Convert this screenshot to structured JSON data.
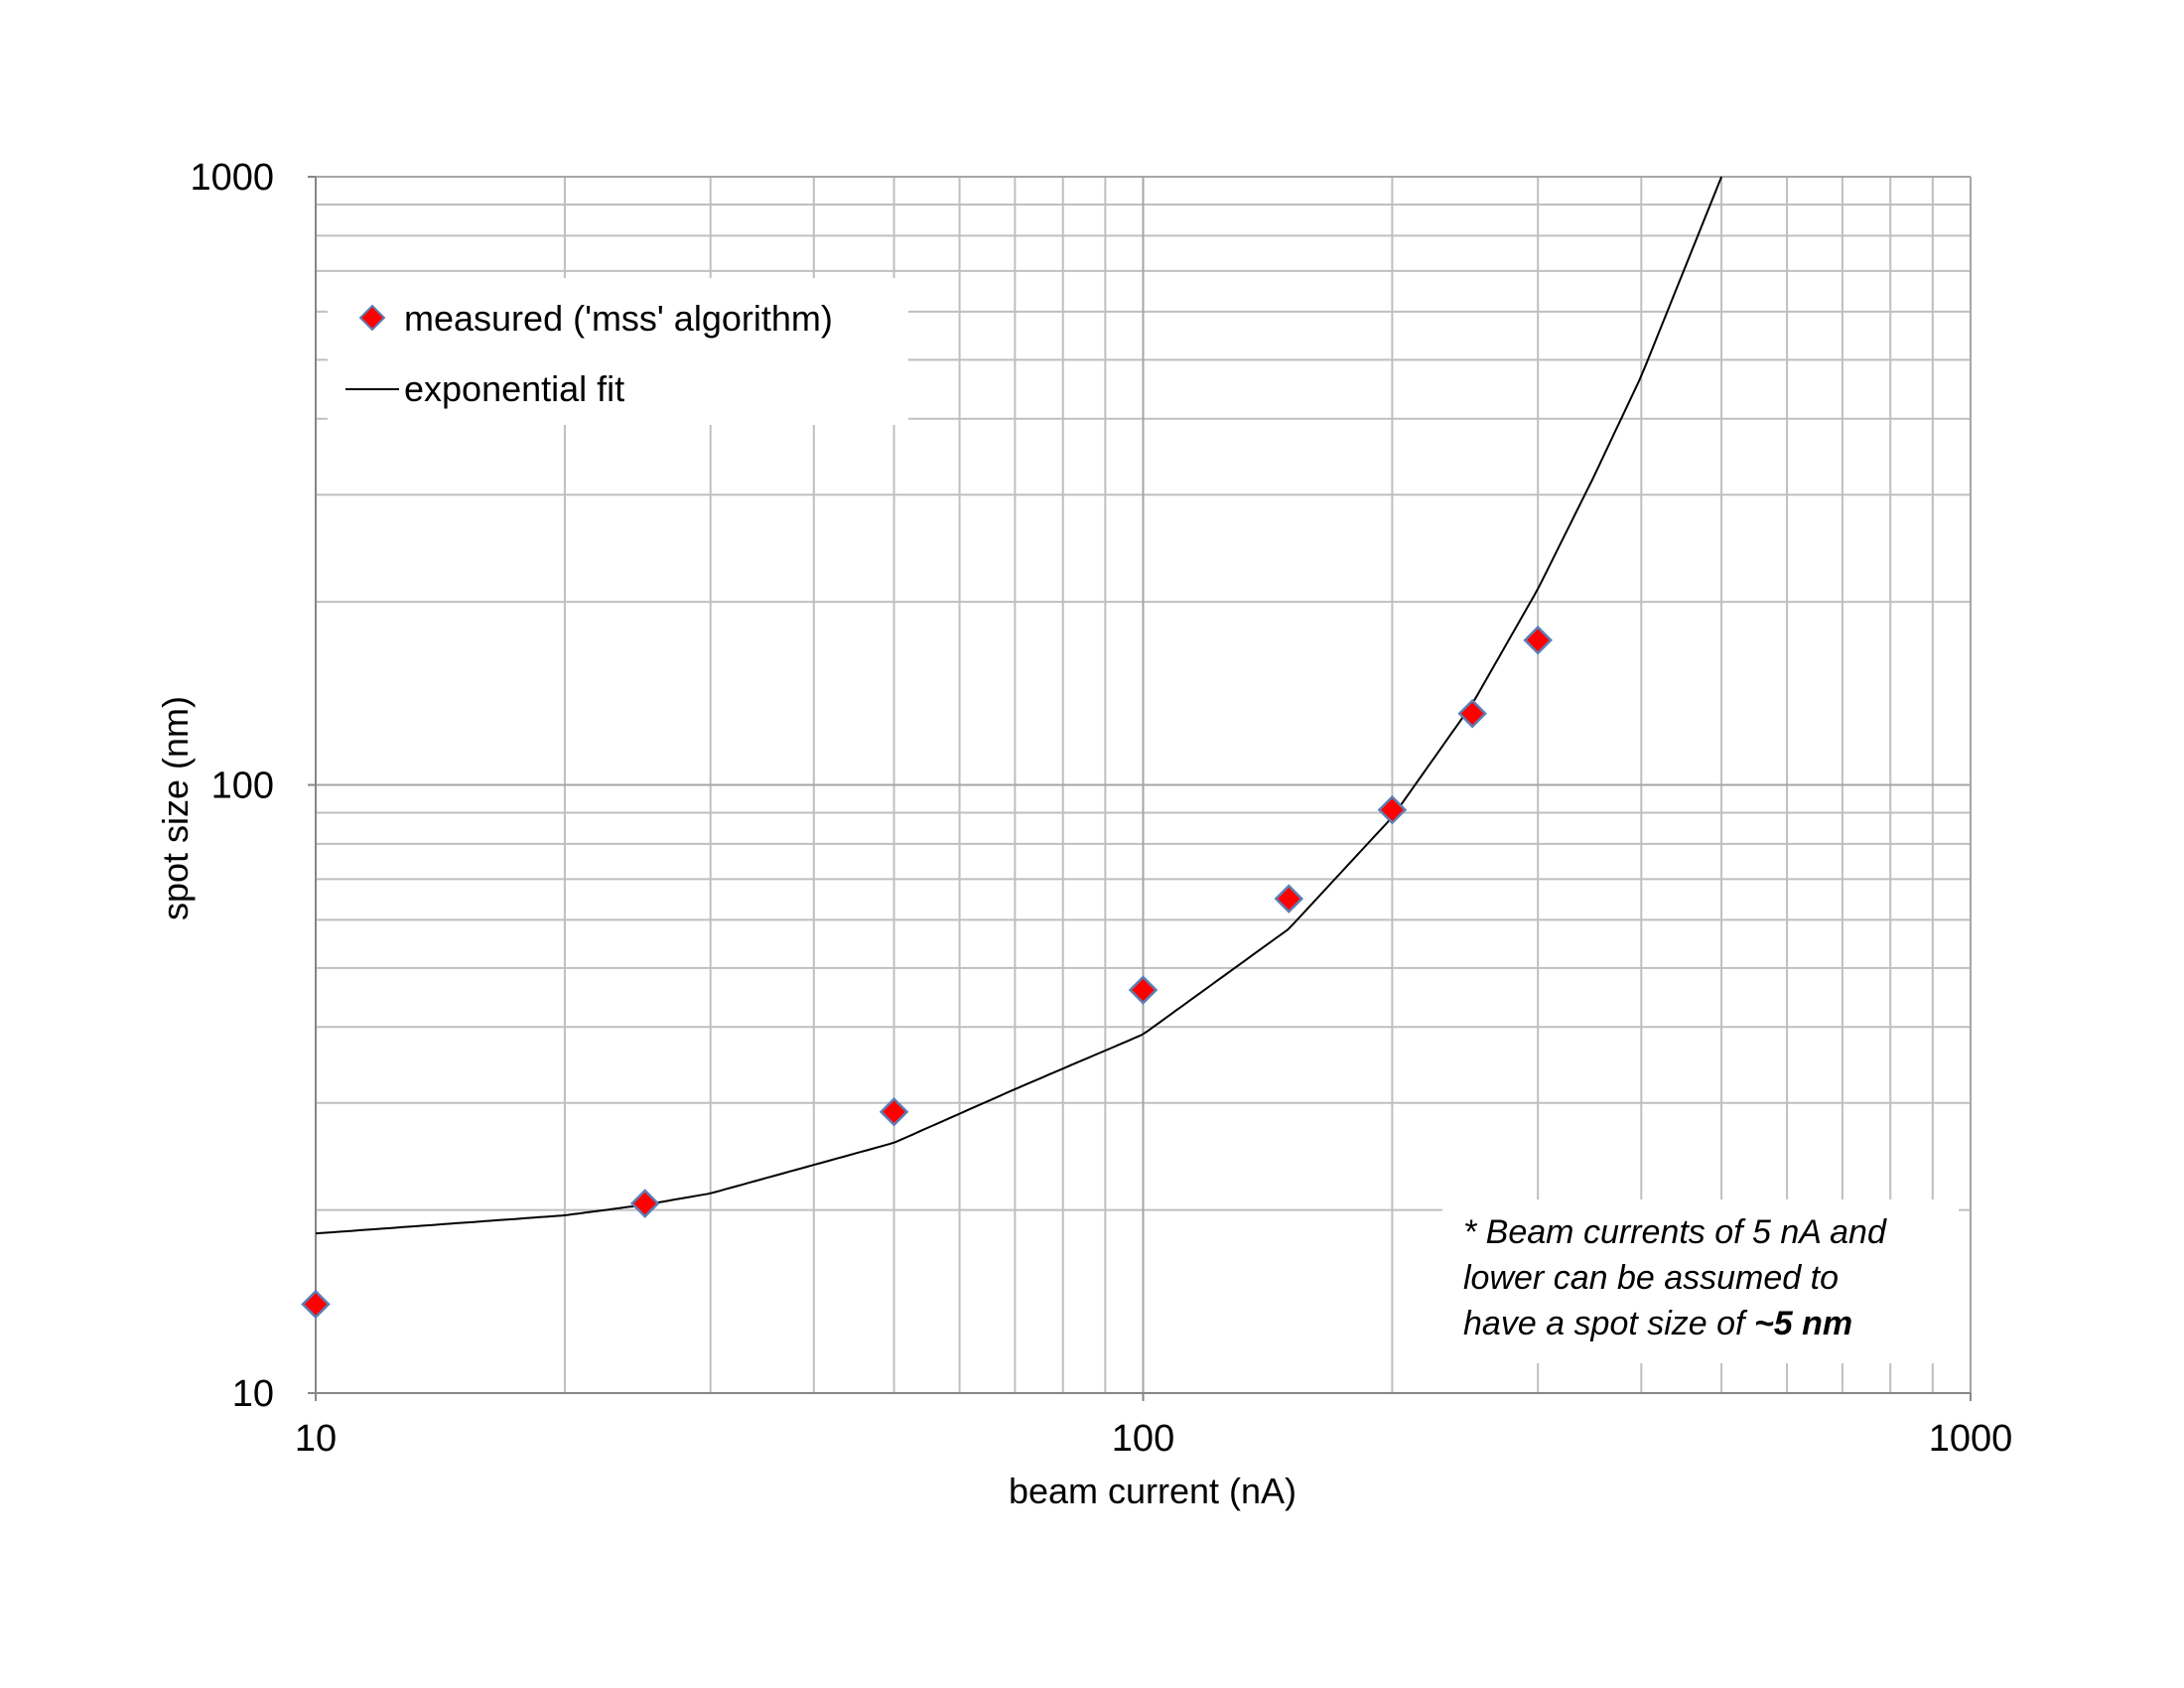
{
  "chart_data": {
    "type": "scatter",
    "xlabel": "beam current (nA)",
    "ylabel": "spot size (nm)",
    "x_scale": "log",
    "y_scale": "log",
    "xlim": [
      10,
      1000
    ],
    "ylim": [
      10,
      1000
    ],
    "x_ticks": [
      "10",
      "100",
      "1000"
    ],
    "y_ticks": [
      "10",
      "100",
      "1000"
    ],
    "grid": true,
    "legend_position": "top-left",
    "series": [
      {
        "name": "measured ('mss' algorithm)",
        "kind": "points",
        "marker": "diamond",
        "color": "#ff0000",
        "edge_color": "#5b7fb5",
        "x": [
          10,
          25,
          50,
          100,
          150,
          200,
          250,
          300
        ],
        "y": [
          14,
          20.5,
          29,
          46,
          65,
          91,
          131,
          173
        ]
      },
      {
        "name": "exponential fit",
        "kind": "line",
        "color": "#000000",
        "x": [
          10,
          20,
          25,
          30,
          50,
          70,
          100,
          150,
          200,
          250,
          300,
          350,
          400,
          450,
          500
        ],
        "y": [
          18.3,
          19.6,
          20.4,
          21.3,
          25.8,
          31.6,
          38.9,
          58.0,
          88.5,
          136,
          210,
          320,
          470,
          700,
          1000
        ]
      }
    ],
    "annotation": {
      "prefix": "* Beam currents of 5 nA and",
      "line2": "lower can be assumed to",
      "line3_text": "have a spot size of ",
      "line3_bold": "~5 nm"
    }
  },
  "colors": {
    "grid": "#bfbfbf",
    "major_grid": "#a6a6a6",
    "axis": "#868686"
  }
}
